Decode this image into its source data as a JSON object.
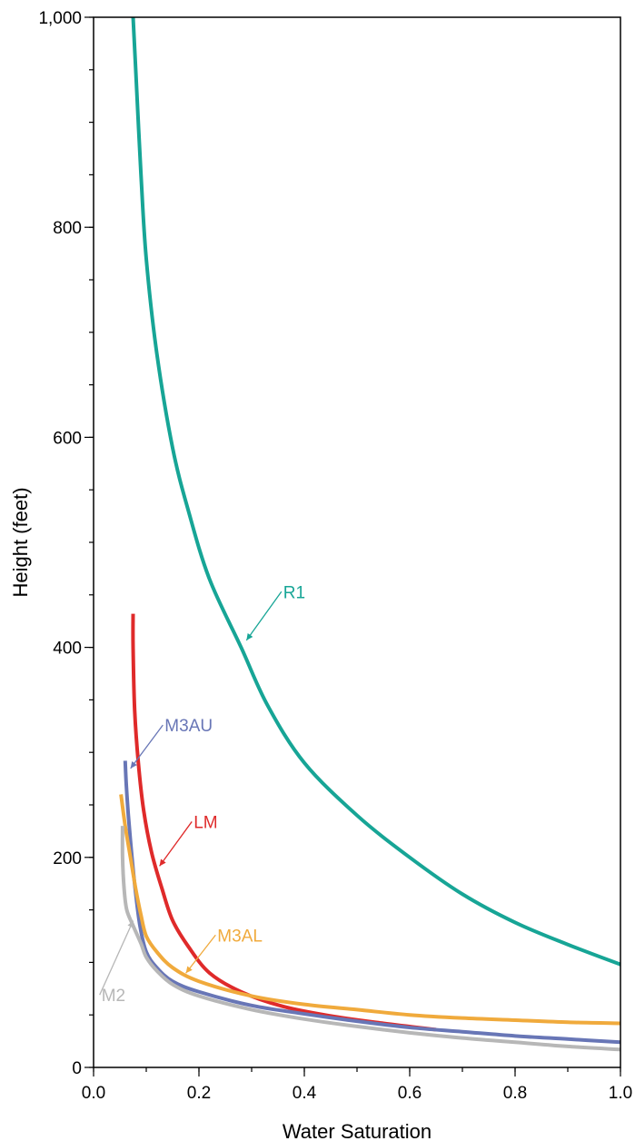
{
  "chart_data": {
    "type": "line",
    "title": "",
    "xlabel": "Water Saturation",
    "ylabel": "Height (feet)",
    "xlim": [
      0,
      1
    ],
    "ylim": [
      0,
      1000
    ],
    "x_ticks": [
      0,
      0.2,
      0.4,
      0.6,
      0.8,
      1.0
    ],
    "x_tick_labels": [
      "0.0",
      "0.2",
      "0.4",
      "0.6",
      "0.8",
      "1.0"
    ],
    "y_ticks": [
      0,
      200,
      400,
      600,
      800,
      1000
    ],
    "y_tick_labels": [
      "0",
      "200",
      "400",
      "600",
      "800",
      "1,000"
    ],
    "y_minor_step": 50,
    "x_minor_step": 0.1,
    "grid": false,
    "legend": "none",
    "series": [
      {
        "name": "R1",
        "color": "#17a596",
        "label_anchor": [
          0.285,
          405
        ],
        "points": [
          [
            0.075,
            1000
          ],
          [
            0.08,
            950
          ],
          [
            0.09,
            850
          ],
          [
            0.1,
            770
          ],
          [
            0.12,
            680
          ],
          [
            0.15,
            590
          ],
          [
            0.18,
            530
          ],
          [
            0.22,
            465
          ],
          [
            0.28,
            400
          ],
          [
            0.33,
            345
          ],
          [
            0.4,
            290
          ],
          [
            0.5,
            240
          ],
          [
            0.6,
            200
          ],
          [
            0.7,
            165
          ],
          [
            0.8,
            138
          ],
          [
            0.9,
            117
          ],
          [
            1.0,
            98
          ]
        ]
      },
      {
        "name": "LM",
        "color": "#df2a2a",
        "label_anchor": [
          0.12,
          190
        ],
        "points": [
          [
            0.075,
            432
          ],
          [
            0.075,
            400
          ],
          [
            0.078,
            340
          ],
          [
            0.085,
            290
          ],
          [
            0.095,
            245
          ],
          [
            0.11,
            205
          ],
          [
            0.13,
            170
          ],
          [
            0.15,
            140
          ],
          [
            0.18,
            115
          ],
          [
            0.22,
            90
          ],
          [
            0.28,
            72
          ],
          [
            0.36,
            58
          ],
          [
            0.45,
            49
          ],
          [
            0.55,
            42
          ],
          [
            0.65,
            36
          ]
        ]
      },
      {
        "name": "M3AU",
        "color": "#6876b6",
        "label_anchor": [
          0.065,
          283
        ],
        "points": [
          [
            0.06,
            292
          ],
          [
            0.062,
            270
          ],
          [
            0.066,
            240
          ],
          [
            0.072,
            205
          ],
          [
            0.079,
            170
          ],
          [
            0.088,
            135
          ],
          [
            0.1,
            110
          ],
          [
            0.12,
            95
          ],
          [
            0.15,
            82
          ],
          [
            0.2,
            72
          ],
          [
            0.3,
            59
          ],
          [
            0.4,
            51
          ],
          [
            0.5,
            44
          ],
          [
            0.6,
            38
          ],
          [
            0.7,
            34
          ],
          [
            0.8,
            30
          ],
          [
            0.9,
            27
          ],
          [
            1.0,
            24
          ]
        ]
      },
      {
        "name": "M3AL",
        "color": "#f0aa3c",
        "label_anchor": [
          0.17,
          88
        ],
        "points": [
          [
            0.052,
            260
          ],
          [
            0.06,
            230
          ],
          [
            0.07,
            200
          ],
          [
            0.08,
            170
          ],
          [
            0.09,
            145
          ],
          [
            0.1,
            125
          ],
          [
            0.12,
            110
          ],
          [
            0.15,
            95
          ],
          [
            0.2,
            82
          ],
          [
            0.3,
            68
          ],
          [
            0.4,
            60
          ],
          [
            0.5,
            55
          ],
          [
            0.6,
            50
          ],
          [
            0.7,
            47
          ],
          [
            0.8,
            45
          ],
          [
            0.9,
            43
          ],
          [
            1.0,
            42
          ]
        ]
      },
      {
        "name": "M2",
        "color": "#b7b7b7",
        "label_anchor": [
          0.07,
          138
        ],
        "points": [
          [
            0.055,
            230
          ],
          [
            0.055,
            200
          ],
          [
            0.058,
            170
          ],
          [
            0.063,
            150
          ],
          [
            0.075,
            135
          ],
          [
            0.09,
            118
          ],
          [
            0.1,
            105
          ],
          [
            0.12,
            92
          ],
          [
            0.15,
            79
          ],
          [
            0.2,
            68
          ],
          [
            0.3,
            55
          ],
          [
            0.4,
            46
          ],
          [
            0.5,
            39
          ],
          [
            0.6,
            33
          ],
          [
            0.7,
            28
          ],
          [
            0.8,
            24
          ],
          [
            0.9,
            20
          ],
          [
            1.0,
            17
          ]
        ]
      }
    ],
    "series_labels": [
      {
        "name": "R1",
        "color": "#17a596",
        "text_pos": [
          0.36,
          447
        ]
      },
      {
        "name": "M3AU",
        "color": "#6876b6",
        "text_pos": [
          0.135,
          320
        ]
      },
      {
        "name": "LM",
        "color": "#df2a2a",
        "text_pos": [
          0.19,
          228
        ]
      },
      {
        "name": "M3AL",
        "color": "#f0aa3c",
        "text_pos": [
          0.235,
          120
        ]
      },
      {
        "name": "M2",
        "color": "#b7b7b7",
        "text_pos": [
          0.015,
          63
        ]
      }
    ]
  }
}
